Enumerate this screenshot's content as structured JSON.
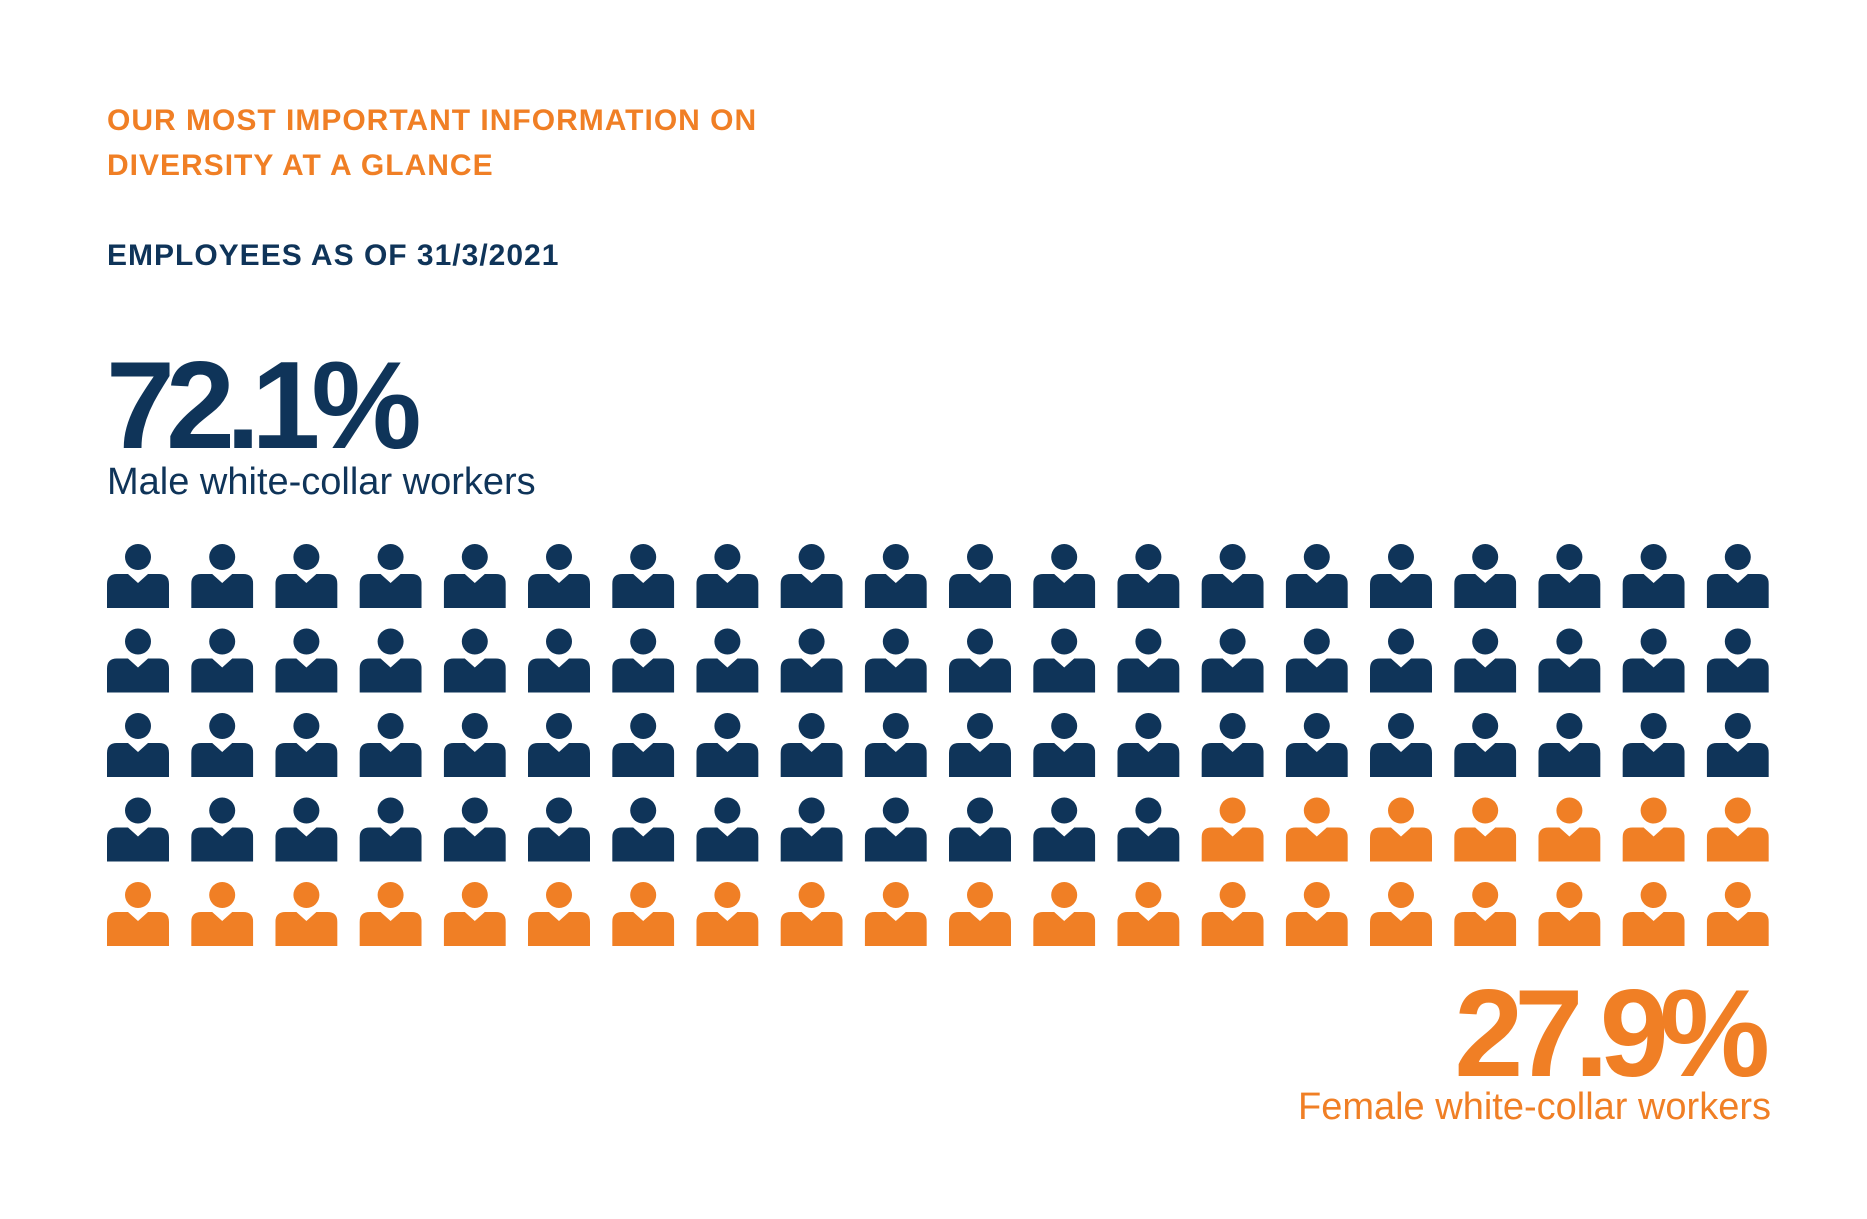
{
  "header": {
    "title_line1": "OUR MOST IMPORTANT INFORMATION ON",
    "title_line2": "DIVERSITY AT A GLANCE",
    "subtitle": "EMPLOYEES AS OF 31/3/2021"
  },
  "colors": {
    "male": "#0f3459",
    "female": "#f07f25",
    "background": "#ffffff"
  },
  "chart_data": {
    "type": "pictograph",
    "total_icons": 100,
    "columns": 20,
    "rows": 5,
    "icon": "person-icon",
    "series": [
      {
        "name": "Male white-collar workers",
        "value_percent": 72.1,
        "value_label": "72.1%",
        "icon_count": 73,
        "color": "#0f3459"
      },
      {
        "name": "Female white-collar workers",
        "value_percent": 27.9,
        "value_label": "27.9%",
        "icon_count": 27,
        "color": "#f07f25"
      }
    ]
  }
}
